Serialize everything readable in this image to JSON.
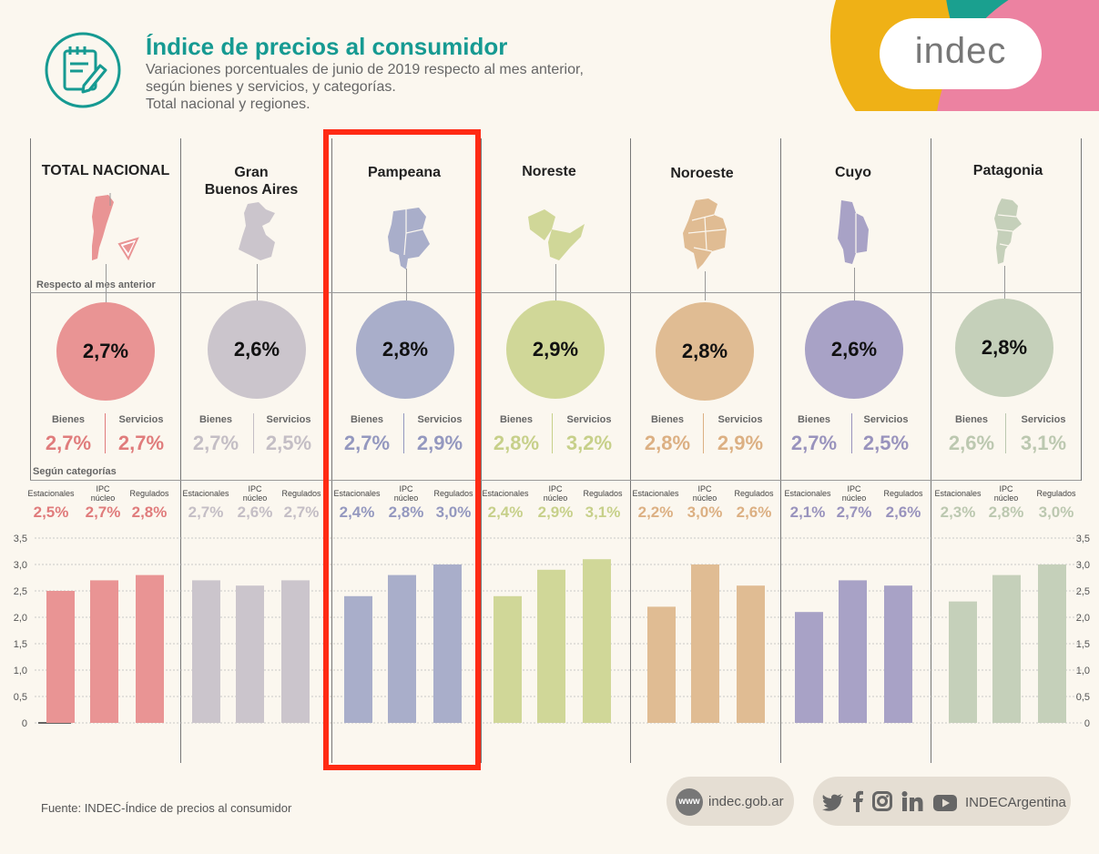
{
  "header": {
    "title": "Índice de precios al consumidor",
    "subtitle_lines": [
      "Variaciones porcentuales de junio de 2019 respecto al mes anterior,",
      "según bienes y servicios, y categorías.",
      "Total nacional y regiones."
    ],
    "logo": "indec"
  },
  "labels": {
    "respecto": "Respecto al mes anterior",
    "segun": "Según categorías",
    "bienes": "Bienes",
    "servicios": "Servicios",
    "estacionales": "Estacionales",
    "ipc_nucleo_1": "IPC",
    "ipc_nucleo_2": "núcleo",
    "regulados": "Regulados"
  },
  "colors": {
    "TOTAL NACIONAL": "#e99494",
    "Gran Buenos Aires": "#cbc5cc",
    "Pampeana": "#a9aeca",
    "Noreste": "#d0d798",
    "Noroeste": "#e0bc93",
    "Cuyo": "#a8a2c6",
    "Patagonia": "#c5d0ba"
  },
  "value_colors": {
    "TOTAL NACIONAL": "#e07c7c",
    "Gran Buenos Aires": "#c4bec5",
    "Pampeana": "#9498bf",
    "Noreste": "#c7d08a",
    "Noroeste": "#dcb083",
    "Cuyo": "#9993bd",
    "Patagonia": "#bcc8b0"
  },
  "regions": [
    {
      "name_lines": [
        "TOTAL NACIONAL"
      ],
      "total": "2,7%",
      "bienes": "2,7%",
      "servicios": "2,7%",
      "estacionales": "2,5%",
      "nucleo": "2,7%",
      "regulados": "2,8%"
    },
    {
      "name_lines": [
        "Gran",
        "Buenos Aires"
      ],
      "total": "2,6%",
      "bienes": "2,7%",
      "servicios": "2,5%",
      "estacionales": "2,7%",
      "nucleo": "2,6%",
      "regulados": "2,7%"
    },
    {
      "name_lines": [
        "Pampeana"
      ],
      "total": "2,8%",
      "bienes": "2,7%",
      "servicios": "2,9%",
      "estacionales": "2,4%",
      "nucleo": "2,8%",
      "regulados": "3,0%"
    },
    {
      "name_lines": [
        "Noreste"
      ],
      "total": "2,9%",
      "bienes": "2,8%",
      "servicios": "3,2%",
      "estacionales": "2,4%",
      "nucleo": "2,9%",
      "regulados": "3,1%"
    },
    {
      "name_lines": [
        "Noroeste"
      ],
      "total": "2,8%",
      "bienes": "2,8%",
      "servicios": "2,9%",
      "estacionales": "2,2%",
      "nucleo": "3,0%",
      "regulados": "2,6%"
    },
    {
      "name_lines": [
        "Cuyo"
      ],
      "total": "2,6%",
      "bienes": "2,7%",
      "servicios": "2,5%",
      "estacionales": "2,1%",
      "nucleo": "2,7%",
      "regulados": "2,6%"
    },
    {
      "name_lines": [
        "Patagonia"
      ],
      "total": "2,8%",
      "bienes": "2,6%",
      "servicios": "3,1%",
      "estacionales": "2,3%",
      "nucleo": "2,8%",
      "regulados": "3,0%"
    }
  ],
  "chart_data": {
    "type": "bar",
    "categories": [
      "Estacionales",
      "IPC núcleo",
      "Regulados"
    ],
    "groups": [
      "TOTAL NACIONAL",
      "Gran Buenos Aires",
      "Pampeana",
      "Noreste",
      "Noroeste",
      "Cuyo",
      "Patagonia"
    ],
    "series": [
      {
        "name": "TOTAL NACIONAL",
        "values": [
          2.5,
          2.7,
          2.8
        ]
      },
      {
        "name": "Gran Buenos Aires",
        "values": [
          2.7,
          2.6,
          2.7
        ]
      },
      {
        "name": "Pampeana",
        "values": [
          2.4,
          2.8,
          3.0
        ]
      },
      {
        "name": "Noreste",
        "values": [
          2.4,
          2.9,
          3.1
        ]
      },
      {
        "name": "Noroeste",
        "values": [
          2.2,
          3.0,
          2.6
        ]
      },
      {
        "name": "Cuyo",
        "values": [
          2.1,
          2.7,
          2.6
        ]
      },
      {
        "name": "Patagonia",
        "values": [
          2.3,
          2.8,
          3.0
        ]
      }
    ],
    "yticks": [
      "0",
      "0,5",
      "1,0",
      "1,5",
      "2,0",
      "2,5",
      "3,0",
      "3,5"
    ],
    "ylim": [
      0,
      3.5
    ],
    "grid": true
  },
  "footer": {
    "source": "Fuente: INDEC-Índice de precios al consumidor",
    "www": "www",
    "site": "indec.gob.ar",
    "handle": "INDECArgentina"
  }
}
